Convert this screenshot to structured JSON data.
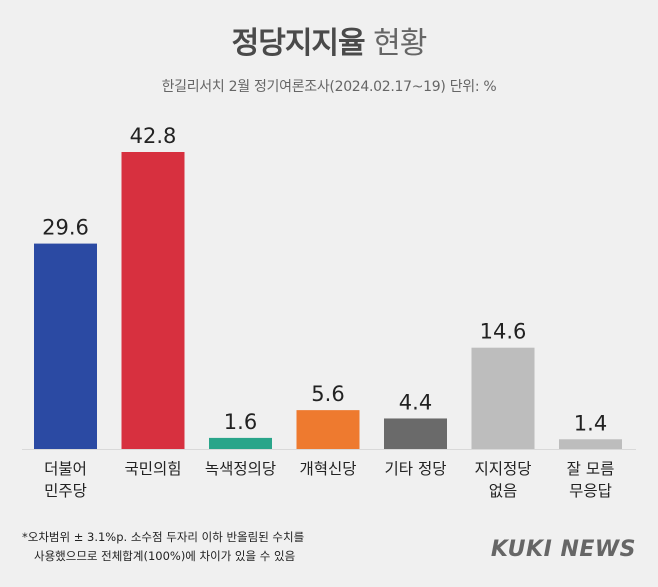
{
  "header": {
    "title_strong": "정당지지율",
    "title_light": "현황",
    "subtitle": "한길리서치 2월 정기여론조사(2024.02.17~19) 단위: %"
  },
  "chart_data": {
    "type": "bar",
    "categories": [
      [
        "더불어",
        "민주당"
      ],
      [
        "국민의힘"
      ],
      [
        "녹색정의당"
      ],
      [
        "개혁신당"
      ],
      [
        "기타 정당"
      ],
      [
        "지지정당",
        "없음"
      ],
      [
        "잘 모름",
        "무응답"
      ]
    ],
    "values": [
      29.6,
      42.8,
      1.6,
      5.6,
      4.4,
      14.6,
      1.4
    ],
    "value_labels": [
      "29.6",
      "42.8",
      "1.6",
      "5.6",
      "4.4",
      "14.6",
      "1.4"
    ],
    "colors": [
      "#2b4aa3",
      "#d7303f",
      "#2aa58a",
      "#ee7a2f",
      "#6a6a6a",
      "#bdbdbd",
      "#bdbdbd"
    ],
    "ylim": [
      0,
      42.8
    ],
    "grid": false,
    "legend": "none"
  },
  "footnote": {
    "line1": "*오차범위 ± 3.1%p. 소수점 두자리 이하 반올림된 수치를",
    "line2": "사용했으므로 전체합계(100%)에 차이가 있을 수 있음"
  },
  "brand": {
    "logo_text": "KUKI NEWS"
  }
}
